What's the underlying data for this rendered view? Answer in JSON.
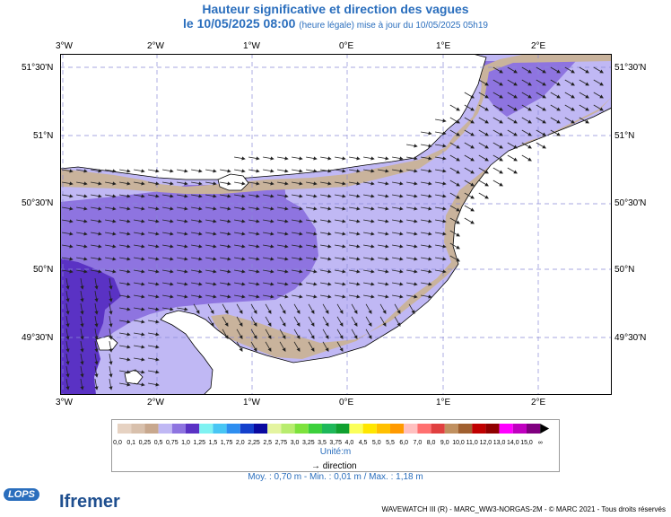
{
  "header": {
    "title": "Hauteur significative et direction des vagues",
    "subtitle_main": "le 10/05/2025 08:00",
    "subtitle_note": "(heure légale) mise à jour du 10/05/2025 05h19"
  },
  "map": {
    "lon_top": [
      "3°W",
      "2°W",
      "1°W",
      "0°E",
      "1°E",
      "2°E"
    ],
    "lon_bottom": [
      "3°W",
      "2°W",
      "1°W",
      "0°E",
      "1°E",
      "2°E"
    ],
    "lat_left": [
      "51°30'N",
      "51°N",
      "50°30'N",
      "50°N",
      "49°30'N"
    ],
    "lat_right": [
      "51°30'N",
      "51°N",
      "50°30'N",
      "50°N",
      "49°30'N"
    ],
    "colors": {
      "sea_0_5": "#c0b8f4",
      "sea_0_75": "#8e74e0",
      "sea_1_0": "#5a32c4",
      "land_low": "#c9b39c",
      "land": "#ffffff",
      "grid": "#8a8ad8"
    }
  },
  "legend": {
    "ticks": [
      "0,0",
      "0,1",
      "0,25",
      "0,5",
      "0,75",
      "1,0",
      "1,25",
      "1,5",
      "1,75",
      "2,0",
      "2,25",
      "2,5",
      "2,75",
      "3,0",
      "3,25",
      "3,5",
      "3,75",
      "4,0",
      "4,5",
      "5,0",
      "5,5",
      "6,0",
      "7,0",
      "8,0",
      "9,0",
      "10,0",
      "11,0",
      "12,0",
      "13,0",
      "14,0",
      "15,0",
      "∞"
    ],
    "colors": [
      "#e6d2c2",
      "#d8c0ac",
      "#c8a88e",
      "#c0b8f4",
      "#8e74e0",
      "#5a32c4",
      "#7ff2f2",
      "#48c6f4",
      "#2e8ef0",
      "#1440cc",
      "#0a0aa0",
      "#e4f4a0",
      "#b8ec6e",
      "#7de23c",
      "#3cd03c",
      "#1eb85a",
      "#10a030",
      "#fbff5a",
      "#ffe600",
      "#ffc000",
      "#ff9a00",
      "#ffc0c0",
      "#ff7070",
      "#e04040",
      "#c09060",
      "#a06030",
      "#c00000",
      "#900000",
      "#ff00ff",
      "#c000c0",
      "#800080"
    ],
    "unit": "Unité:m",
    "direction_label": "direction"
  },
  "stats": {
    "text": "Moy. : 0,70 m  -  Min. : 0,01 m / Max. : 1,18 m"
  },
  "footer": {
    "credit": "WAVEWATCH III (R) - MARC_WW3-NORGAS-2M - © MARC 2021 - Tous droits réservés",
    "logo_left": "LOPS",
    "logo_right": "Ifremer"
  }
}
